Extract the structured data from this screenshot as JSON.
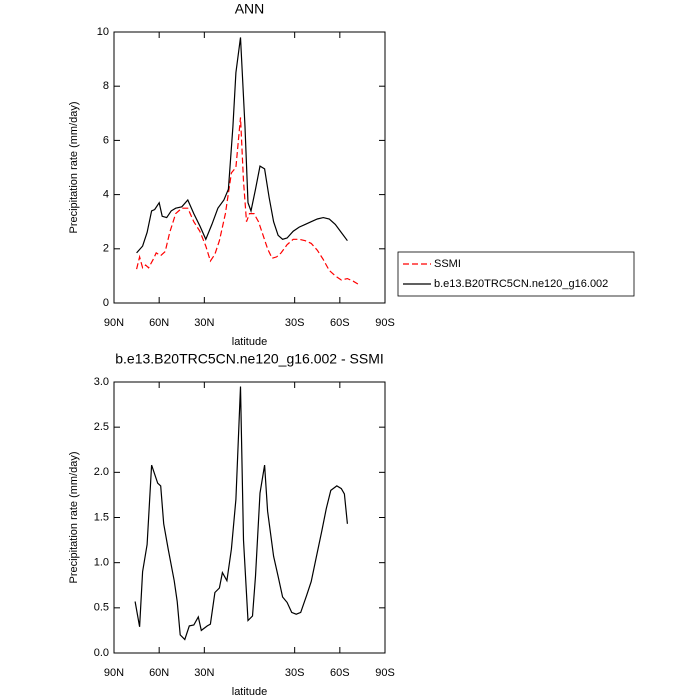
{
  "chart_data": [
    {
      "type": "line",
      "title": "ANN",
      "xlabel": "latitude",
      "ylabel": "Precipitation rate (mm/day)",
      "xlim": [
        90,
        -90
      ],
      "ylim": [
        0,
        10
      ],
      "xticks": [
        {
          "value": 90,
          "label": "90N"
        },
        {
          "value": 60,
          "label": "60N"
        },
        {
          "value": 30,
          "label": "30N"
        },
        {
          "value": -30,
          "label": "30S"
        },
        {
          "value": -60,
          "label": "60S"
        },
        {
          "value": -90,
          "label": "90S"
        }
      ],
      "yticks": [
        0,
        2,
        4,
        6,
        8,
        10
      ],
      "legend": "outside-right",
      "series": [
        {
          "name": "SSMI",
          "color": "#ff0000",
          "dash": true,
          "x": [
            75,
            73,
            71,
            69,
            67,
            64,
            62,
            59,
            56,
            53,
            49,
            45,
            41,
            37,
            33,
            29,
            26,
            23,
            20,
            16,
            12,
            9,
            6,
            4,
            2,
            0,
            -3,
            -6,
            -9,
            -12,
            -15,
            -18,
            -21,
            -25,
            -29,
            -33,
            -37,
            -41,
            -45,
            -49,
            -53,
            -57,
            -61,
            -65,
            -69,
            -72
          ],
          "values": [
            1.25,
            1.7,
            1.3,
            1.4,
            1.3,
            1.6,
            1.85,
            1.75,
            1.9,
            2.6,
            3.3,
            3.5,
            3.5,
            3.0,
            2.65,
            2.1,
            1.55,
            1.8,
            2.3,
            3.3,
            4.8,
            5.0,
            6.85,
            4.5,
            3.0,
            3.3,
            3.3,
            3.0,
            2.5,
            2.0,
            1.65,
            1.7,
            1.85,
            2.15,
            2.35,
            2.35,
            2.3,
            2.2,
            1.95,
            1.6,
            1.2,
            1.0,
            0.85,
            0.9,
            0.8,
            0.7
          ]
        },
        {
          "name": "b.e13.B20TRC5CN.ne120_g16.002",
          "color": "#000000",
          "dash": false,
          "x": [
            75,
            71,
            68,
            65,
            63,
            60,
            58,
            55,
            52,
            49,
            45,
            41,
            37,
            33,
            29,
            25,
            21,
            17,
            14,
            11,
            9,
            6,
            3,
            1,
            -1,
            -4,
            -7,
            -10,
            -13,
            -16,
            -19,
            -22,
            -25,
            -29,
            -33,
            -37,
            -41,
            -45,
            -49,
            -53,
            -57,
            -61,
            -65
          ],
          "values": [
            1.85,
            2.1,
            2.6,
            3.4,
            3.45,
            3.7,
            3.2,
            3.15,
            3.4,
            3.5,
            3.55,
            3.8,
            3.3,
            2.85,
            2.35,
            2.9,
            3.5,
            3.8,
            4.2,
            6.5,
            8.5,
            9.8,
            6.5,
            3.7,
            3.4,
            4.2,
            5.05,
            4.95,
            3.9,
            3.0,
            2.5,
            2.35,
            2.4,
            2.65,
            2.8,
            2.9,
            3.0,
            3.1,
            3.15,
            3.1,
            2.9,
            2.6,
            2.3
          ]
        }
      ]
    },
    {
      "type": "line",
      "title": "b.e13.B20TRC5CN.ne120_g16.002 - SSMI",
      "xlabel": "latitude",
      "ylabel": "Precipitation rate (mm/day)",
      "xlim": [
        90,
        -90
      ],
      "ylim": [
        0,
        3
      ],
      "xticks": [
        {
          "value": 90,
          "label": "90N"
        },
        {
          "value": 60,
          "label": "60N"
        },
        {
          "value": 30,
          "label": "30N"
        },
        {
          "value": -30,
          "label": "30S"
        },
        {
          "value": -60,
          "label": "60S"
        },
        {
          "value": -90,
          "label": "90S"
        }
      ],
      "yticks": [
        {
          "value": 0,
          "label": "0.0"
        },
        {
          "value": 0.5,
          "label": "0.5"
        },
        {
          "value": 1,
          "label": "1.0"
        },
        {
          "value": 1.5,
          "label": "1.5"
        },
        {
          "value": 2,
          "label": "2.0"
        },
        {
          "value": 2.5,
          "label": "2.5"
        },
        {
          "value": 3,
          "label": "3.0"
        }
      ],
      "series": [
        {
          "color": "#000000",
          "dash": false,
          "x": [
            76,
            73,
            71,
            68,
            65,
            61,
            59,
            57,
            54,
            50,
            48,
            46,
            43,
            40,
            37,
            34,
            32,
            28,
            26,
            23,
            20,
            18,
            15,
            12,
            9,
            6,
            4,
            1,
            -2,
            -4,
            -7,
            -10,
            -12,
            -16,
            -19,
            -22,
            -25,
            -28,
            -31,
            -34,
            -38,
            -41,
            -44,
            -48,
            -51,
            -54,
            -58,
            -61,
            -63,
            -65
          ],
          "values": [
            0.57,
            0.29,
            0.9,
            1.2,
            2.08,
            1.88,
            1.85,
            1.43,
            1.15,
            0.8,
            0.57,
            0.2,
            0.15,
            0.3,
            0.31,
            0.4,
            0.25,
            0.3,
            0.32,
            0.67,
            0.72,
            0.89,
            0.8,
            1.15,
            1.7,
            2.95,
            1.25,
            0.36,
            0.41,
            0.85,
            1.77,
            2.08,
            1.57,
            1.07,
            0.85,
            0.62,
            0.56,
            0.45,
            0.43,
            0.45,
            0.64,
            0.79,
            1.03,
            1.35,
            1.6,
            1.8,
            1.85,
            1.82,
            1.76,
            1.43
          ]
        }
      ]
    }
  ]
}
